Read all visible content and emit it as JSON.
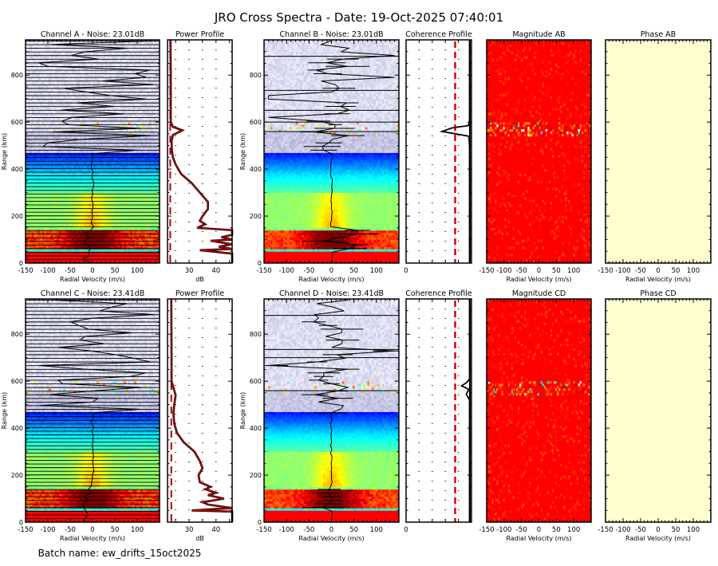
{
  "title": "JRO Cross Spectra - Date: 19-Oct-2025 07:40:01",
  "batch_label": "Batch name: ew_drifts_15oct2025",
  "colors": {
    "profile_line": "#cc0000",
    "noise_line": "#b00000",
    "coherence_marker": "#dd0000",
    "magnitude_bg": "#ff0000",
    "phase_bg": "#ffffd0"
  },
  "chart_data": [
    {
      "type": "heatmap",
      "title": "Channel A - Noise: 23.01dB",
      "xlabel": "Radial Velocity (m/s)",
      "ylabel": "Range (km)",
      "xlim": [
        -150,
        150
      ],
      "ylim": [
        0,
        950
      ],
      "xticks": [
        -150,
        -100,
        -50,
        0,
        50,
        100
      ],
      "yticks": [
        0,
        200,
        400,
        600,
        800
      ],
      "noise_db": 23.01
    },
    {
      "type": "line",
      "title": "Power Profile",
      "xlabel": "dB",
      "xlim": [
        22,
        46
      ],
      "xticks": [
        30,
        40
      ],
      "ylim": [
        0,
        950
      ],
      "noise_db": 23.01,
      "profile": [
        [
          0,
          46
        ],
        [
          40,
          46
        ],
        [
          55,
          34
        ],
        [
          60,
          46
        ],
        [
          70,
          41
        ],
        [
          80,
          46
        ],
        [
          95,
          38
        ],
        [
          100,
          46
        ],
        [
          110,
          42
        ],
        [
          120,
          46
        ],
        [
          140,
          46
        ],
        [
          150,
          33
        ],
        [
          165,
          36
        ],
        [
          180,
          34
        ],
        [
          200,
          35
        ],
        [
          230,
          37
        ],
        [
          260,
          37
        ],
        [
          300,
          34
        ],
        [
          340,
          31
        ],
        [
          380,
          27
        ],
        [
          420,
          25
        ],
        [
          450,
          24
        ],
        [
          480,
          23.6
        ],
        [
          520,
          23.5
        ],
        [
          545,
          24
        ],
        [
          565,
          27.5
        ],
        [
          580,
          24
        ],
        [
          600,
          23.2
        ],
        [
          700,
          23.2
        ],
        [
          800,
          23.2
        ],
        [
          950,
          23.1
        ]
      ]
    },
    {
      "type": "heatmap",
      "title": "Channel B - Noise: 23.01dB",
      "xlabel": "Radial Velocity (m/s)",
      "ylabel": "Range (km)",
      "xlim": [
        -150,
        150
      ],
      "ylim": [
        0,
        950
      ],
      "xticks": [
        -150,
        -100,
        -50,
        0,
        50,
        100
      ],
      "yticks": [
        0,
        200,
        400,
        600,
        800
      ],
      "noise_db": 23.01
    },
    {
      "type": "line",
      "title": "Coherence Profile",
      "xlabel": "",
      "xlim": [
        0,
        1
      ],
      "xticks": [
        0
      ],
      "ylim": [
        0,
        950
      ],
      "threshold": 0.75,
      "profile": [
        [
          0,
          0.97
        ],
        [
          500,
          0.97
        ],
        [
          540,
          0.96
        ],
        [
          560,
          0.55
        ],
        [
          575,
          0.7
        ],
        [
          585,
          0.95
        ],
        [
          600,
          0.97
        ],
        [
          950,
          0.97
        ]
      ]
    },
    {
      "type": "heatmap",
      "title": "Magnitude AB",
      "xlabel": "Radial Velocity (m/s)",
      "xlim": [
        -150,
        150
      ],
      "ylim": [
        0,
        950
      ],
      "xticks": [
        -150,
        -100,
        -50,
        0,
        50,
        100
      ]
    },
    {
      "type": "heatmap",
      "title": "Phase AB",
      "xlabel": "Radial Velocity (m/s)",
      "xlim": [
        -150,
        150
      ],
      "ylim": [
        0,
        950
      ],
      "xticks": [
        -150,
        -100,
        -50,
        0,
        50,
        100
      ]
    },
    {
      "type": "heatmap",
      "title": "Channel C - Noise: 23.41dB",
      "xlabel": "Radial Velocity (m/s)",
      "ylabel": "Range (km)",
      "xlim": [
        -150,
        150
      ],
      "ylim": [
        0,
        950
      ],
      "xticks": [
        -150,
        -100,
        -50,
        0,
        50,
        100
      ],
      "yticks": [
        0,
        200,
        400,
        600,
        800
      ],
      "noise_db": 23.41
    },
    {
      "type": "line",
      "title": "Power Profile",
      "xlabel": "dB",
      "xlim": [
        22,
        46
      ],
      "xticks": [
        30,
        40
      ],
      "ylim": [
        0,
        950
      ],
      "noise_db": 23.41,
      "profile": [
        [
          0,
          46
        ],
        [
          45,
          46
        ],
        [
          50,
          31
        ],
        [
          60,
          46
        ],
        [
          75,
          37
        ],
        [
          85,
          35
        ],
        [
          100,
          43
        ],
        [
          115,
          37
        ],
        [
          125,
          40
        ],
        [
          140,
          36
        ],
        [
          150,
          38
        ],
        [
          170,
          34
        ],
        [
          200,
          33.5
        ],
        [
          230,
          35
        ],
        [
          260,
          34
        ],
        [
          300,
          32
        ],
        [
          340,
          28
        ],
        [
          380,
          25.5
        ],
        [
          420,
          24.5
        ],
        [
          460,
          24.2
        ],
        [
          500,
          24.5
        ],
        [
          540,
          25
        ],
        [
          560,
          24.5
        ],
        [
          600,
          23.5
        ],
        [
          700,
          23.5
        ],
        [
          950,
          23.4
        ]
      ]
    },
    {
      "type": "heatmap",
      "title": "Channel D - Noise: 23.41dB",
      "xlabel": "Radial Velocity (m/s)",
      "ylabel": "Range (km)",
      "xlim": [
        -150,
        150
      ],
      "ylim": [
        0,
        950
      ],
      "xticks": [
        -150,
        -100,
        -50,
        0,
        50,
        100
      ],
      "yticks": [
        0,
        200,
        400,
        600,
        800
      ],
      "noise_db": 23.41
    },
    {
      "type": "line",
      "title": "Coherence Profile",
      "xlabel": "",
      "xlim": [
        0,
        1
      ],
      "xticks": [
        0
      ],
      "ylim": [
        0,
        950
      ],
      "threshold": 0.75,
      "profile": [
        [
          0,
          0.97
        ],
        [
          520,
          0.97
        ],
        [
          545,
          0.92
        ],
        [
          565,
          0.96
        ],
        [
          580,
          0.85
        ],
        [
          595,
          0.93
        ],
        [
          610,
          0.97
        ],
        [
          950,
          0.97
        ]
      ]
    },
    {
      "type": "heatmap",
      "title": "Magnitude CD",
      "xlabel": "Radial Velocity (m/s)",
      "xlim": [
        -150,
        150
      ],
      "ylim": [
        0,
        950
      ],
      "xticks": [
        -150,
        -100,
        -50,
        0,
        50,
        100
      ]
    },
    {
      "type": "heatmap",
      "title": "Phase CD",
      "xlabel": "Radial Velocity (m/s)",
      "xlim": [
        -150,
        150
      ],
      "ylim": [
        0,
        950
      ],
      "xticks": [
        -150,
        -100,
        -50,
        0,
        50,
        100
      ]
    }
  ]
}
